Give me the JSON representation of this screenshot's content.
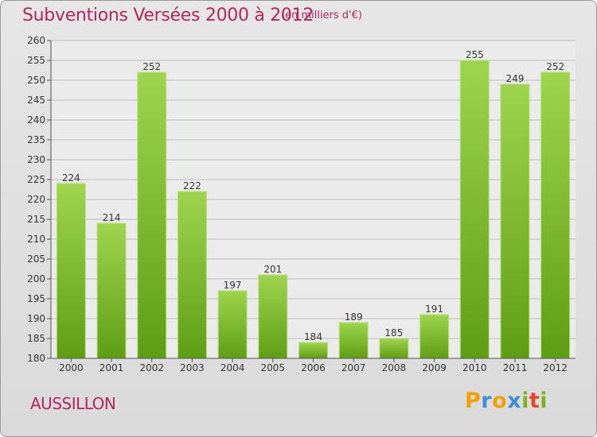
{
  "chart_data": {
    "type": "bar",
    "title": "Subventions Versées 2000 à 2012",
    "subtitle": "(en milliers d'€)",
    "categories": [
      "2000",
      "2001",
      "2002",
      "2003",
      "2004",
      "2005",
      "2006",
      "2007",
      "2008",
      "2009",
      "2010",
      "2011",
      "2012"
    ],
    "values": [
      224,
      214,
      252,
      222,
      197,
      201,
      184,
      189,
      185,
      191,
      255,
      249,
      252
    ],
    "data_labels": [
      "224",
      "214",
      "252",
      "222",
      "197",
      "201",
      "184",
      "189",
      "185",
      "191",
      "255",
      "249",
      "252"
    ],
    "ylim": [
      180,
      260
    ],
    "y_ticks": [
      "180",
      "185",
      "190",
      "195",
      "200",
      "205",
      "210",
      "215",
      "220",
      "225",
      "230",
      "235",
      "240",
      "245",
      "250",
      "255",
      "260"
    ],
    "grid": true,
    "bar_color": "#7fbf2e"
  },
  "place": "AUSSILLON",
  "logo": {
    "letters": [
      "P",
      "r",
      "o",
      "x",
      "i",
      "t",
      "i"
    ],
    "colors": [
      "#f4a000",
      "#3a8fd8",
      "#f4a000",
      "#3a8fd8",
      "#7ab51d",
      "#e8442c",
      "#7ab51d"
    ]
  },
  "colors": {
    "title": "#b5255e"
  }
}
